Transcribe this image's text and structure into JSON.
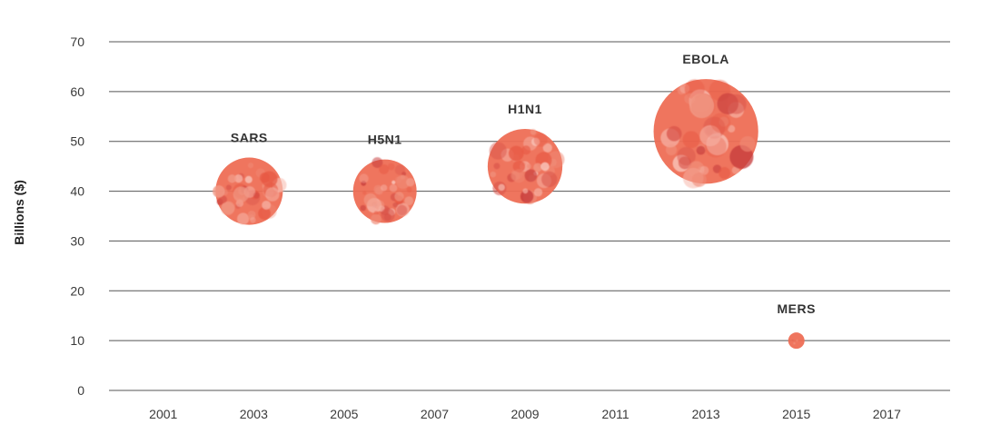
{
  "chart_data": {
    "type": "scatter",
    "ylabel": "Billions ($)",
    "xlabel": "",
    "title": "",
    "ylim": [
      0,
      70
    ],
    "xlim": [
      1999.8,
      2018.4
    ],
    "yticks": [
      0,
      10,
      20,
      30,
      40,
      50,
      60,
      70
    ],
    "xticks": [
      2001,
      2003,
      2005,
      2007,
      2009,
      2011,
      2013,
      2015,
      2017
    ],
    "grid": true,
    "colors": {
      "main": "#ee6e55",
      "light": "#f7b3a6",
      "dark": "#c63b3b",
      "mid": "#f08a76"
    },
    "points": [
      {
        "label": "SARS",
        "x": 2002.9,
        "y": 40,
        "size": 9
      },
      {
        "label": "H5N1",
        "x": 2005.9,
        "y": 40,
        "size": 8.5
      },
      {
        "label": "H1N1",
        "x": 2009,
        "y": 45,
        "size": 10
      },
      {
        "label": "EBOLA",
        "x": 2013,
        "y": 52,
        "size": 14
      },
      {
        "label": "MERS",
        "x": 2015,
        "y": 10,
        "size": 0.4
      }
    ]
  }
}
